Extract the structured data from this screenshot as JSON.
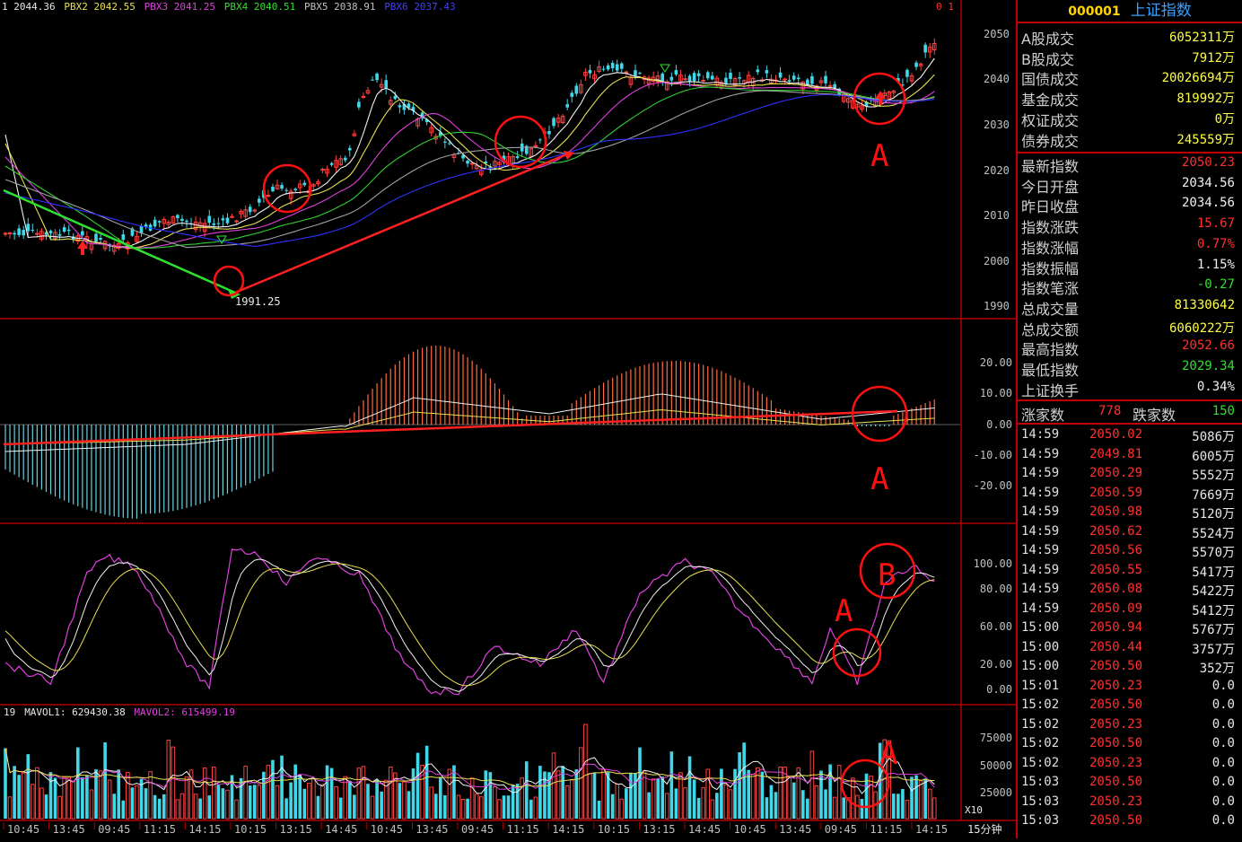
{
  "header": {
    "ma_labels": [
      {
        "text": "1 2044.36",
        "color": "#e8e8e8"
      },
      {
        "text": "PBX2 2042.55",
        "color": "#e8e050"
      },
      {
        "text": "PBX3 2041.25",
        "color": "#e040e0"
      },
      {
        "text": "PBX4 2040.51",
        "color": "#30e030"
      },
      {
        "text": "PBX5 2038.91",
        "color": "#c0c0c0"
      },
      {
        "text": "PBX6 2037.43",
        "color": "#4040ff"
      }
    ],
    "corner_label": "0 1"
  },
  "price_axis": [
    "2050",
    "2040",
    "2030",
    "2020",
    "2010",
    "2000",
    "1990"
  ],
  "low_marker": "1991.25",
  "macd_axis": [
    "20.00",
    "10.00",
    "0.00",
    "-10.00",
    "-20.00"
  ],
  "kdj_axis": [
    "100.00",
    "80.00",
    "60.00",
    "20.00",
    "0.00"
  ],
  "volume": {
    "legend": [
      {
        "text": "19",
        "color": "#e8e8e8"
      },
      {
        "text": "MAVOL1: 629430.38",
        "color": "#e8e8e8"
      },
      {
        "text": "MAVOL2: 615499.19",
        "color": "#e040e0"
      }
    ],
    "axis": [
      "75000",
      "50000",
      "25000"
    ],
    "unit": "X10"
  },
  "time_axis": [
    "10:45",
    "13:45",
    "09:45",
    "11:15",
    "14:15",
    "10:15",
    "13:15",
    "14:45",
    "10:45",
    "13:45",
    "09:45",
    "11:15",
    "14:15",
    "10:15",
    "13:15",
    "14:45",
    "10:45",
    "13:45",
    "09:45",
    "11:15",
    "14:15"
  ],
  "period_label": "15分钟",
  "annotations": {
    "a": "A",
    "b": "B"
  },
  "quote": {
    "code": "000001",
    "name": "上证指数",
    "turnover": [
      {
        "label": "A股成交",
        "value": "6052311万",
        "color": "#ffff40"
      },
      {
        "label": "B股成交",
        "value": "7912万",
        "color": "#ffff40"
      },
      {
        "label": "国债成交",
        "value": "20026694万",
        "color": "#ffff40"
      },
      {
        "label": "基金成交",
        "value": "819992万",
        "color": "#ffff40"
      },
      {
        "label": "权证成交",
        "value": "0万",
        "color": "#ffff40"
      },
      {
        "label": "债券成交",
        "value": "245559万",
        "color": "#ffff40"
      }
    ],
    "stats": [
      {
        "label": "最新指数",
        "value": "2050.23",
        "color": "#ff3030"
      },
      {
        "label": "今日开盘",
        "value": "2034.56",
        "color": "#f0f0f0"
      },
      {
        "label": "昨日收盘",
        "value": "2034.56",
        "color": "#f0f0f0"
      },
      {
        "label": "指数涨跌",
        "value": "15.67",
        "color": "#ff3030"
      },
      {
        "label": "指数涨幅",
        "value": "0.77%",
        "color": "#ff3030"
      },
      {
        "label": "指数振幅",
        "value": "1.15%",
        "color": "#f0f0f0"
      },
      {
        "label": "指数笔涨",
        "value": "-0.27",
        "color": "#30e030"
      },
      {
        "label": "总成交量",
        "value": "81330642",
        "color": "#ffff40"
      },
      {
        "label": "总成交额",
        "value": "6060222万",
        "color": "#ffff40"
      },
      {
        "label": "最高指数",
        "value": "2052.66",
        "color": "#ff3030"
      },
      {
        "label": "最低指数",
        "value": "2029.34",
        "color": "#30e030"
      },
      {
        "label": "上证换手",
        "value": "0.34%",
        "color": "#f0f0f0"
      }
    ],
    "advance_label": "涨家数",
    "advance_value": "778",
    "decline_label": "跌家数",
    "decline_value": "150"
  },
  "ticks": [
    {
      "time": "14:59",
      "price": "2050.02",
      "vol": "5086万"
    },
    {
      "time": "14:59",
      "price": "2049.81",
      "vol": "6005万"
    },
    {
      "time": "14:59",
      "price": "2050.29",
      "vol": "5552万"
    },
    {
      "time": "14:59",
      "price": "2050.59",
      "vol": "7669万"
    },
    {
      "time": "14:59",
      "price": "2050.98",
      "vol": "5120万"
    },
    {
      "time": "14:59",
      "price": "2050.62",
      "vol": "5524万"
    },
    {
      "time": "14:59",
      "price": "2050.56",
      "vol": "5570万"
    },
    {
      "time": "14:59",
      "price": "2050.55",
      "vol": "5417万"
    },
    {
      "time": "14:59",
      "price": "2050.08",
      "vol": "5422万"
    },
    {
      "time": "14:59",
      "price": "2050.09",
      "vol": "5412万"
    },
    {
      "time": "15:00",
      "price": "2050.94",
      "vol": "5767万"
    },
    {
      "time": "15:00",
      "price": "2050.44",
      "vol": "3757万"
    },
    {
      "time": "15:00",
      "price": "2050.50",
      "vol": "352万"
    },
    {
      "time": "15:01",
      "price": "2050.23",
      "vol": "0.0"
    },
    {
      "time": "15:02",
      "price": "2050.50",
      "vol": "0.0"
    },
    {
      "time": "15:02",
      "price": "2050.23",
      "vol": "0.0"
    },
    {
      "time": "15:02",
      "price": "2050.50",
      "vol": "0.0"
    },
    {
      "time": "15:02",
      "price": "2050.23",
      "vol": "0.0"
    },
    {
      "time": "15:03",
      "price": "2050.50",
      "vol": "0.0"
    },
    {
      "time": "15:03",
      "price": "2050.23",
      "vol": "0.0"
    },
    {
      "time": "15:03",
      "price": "2050.50",
      "vol": "0.0"
    }
  ]
}
